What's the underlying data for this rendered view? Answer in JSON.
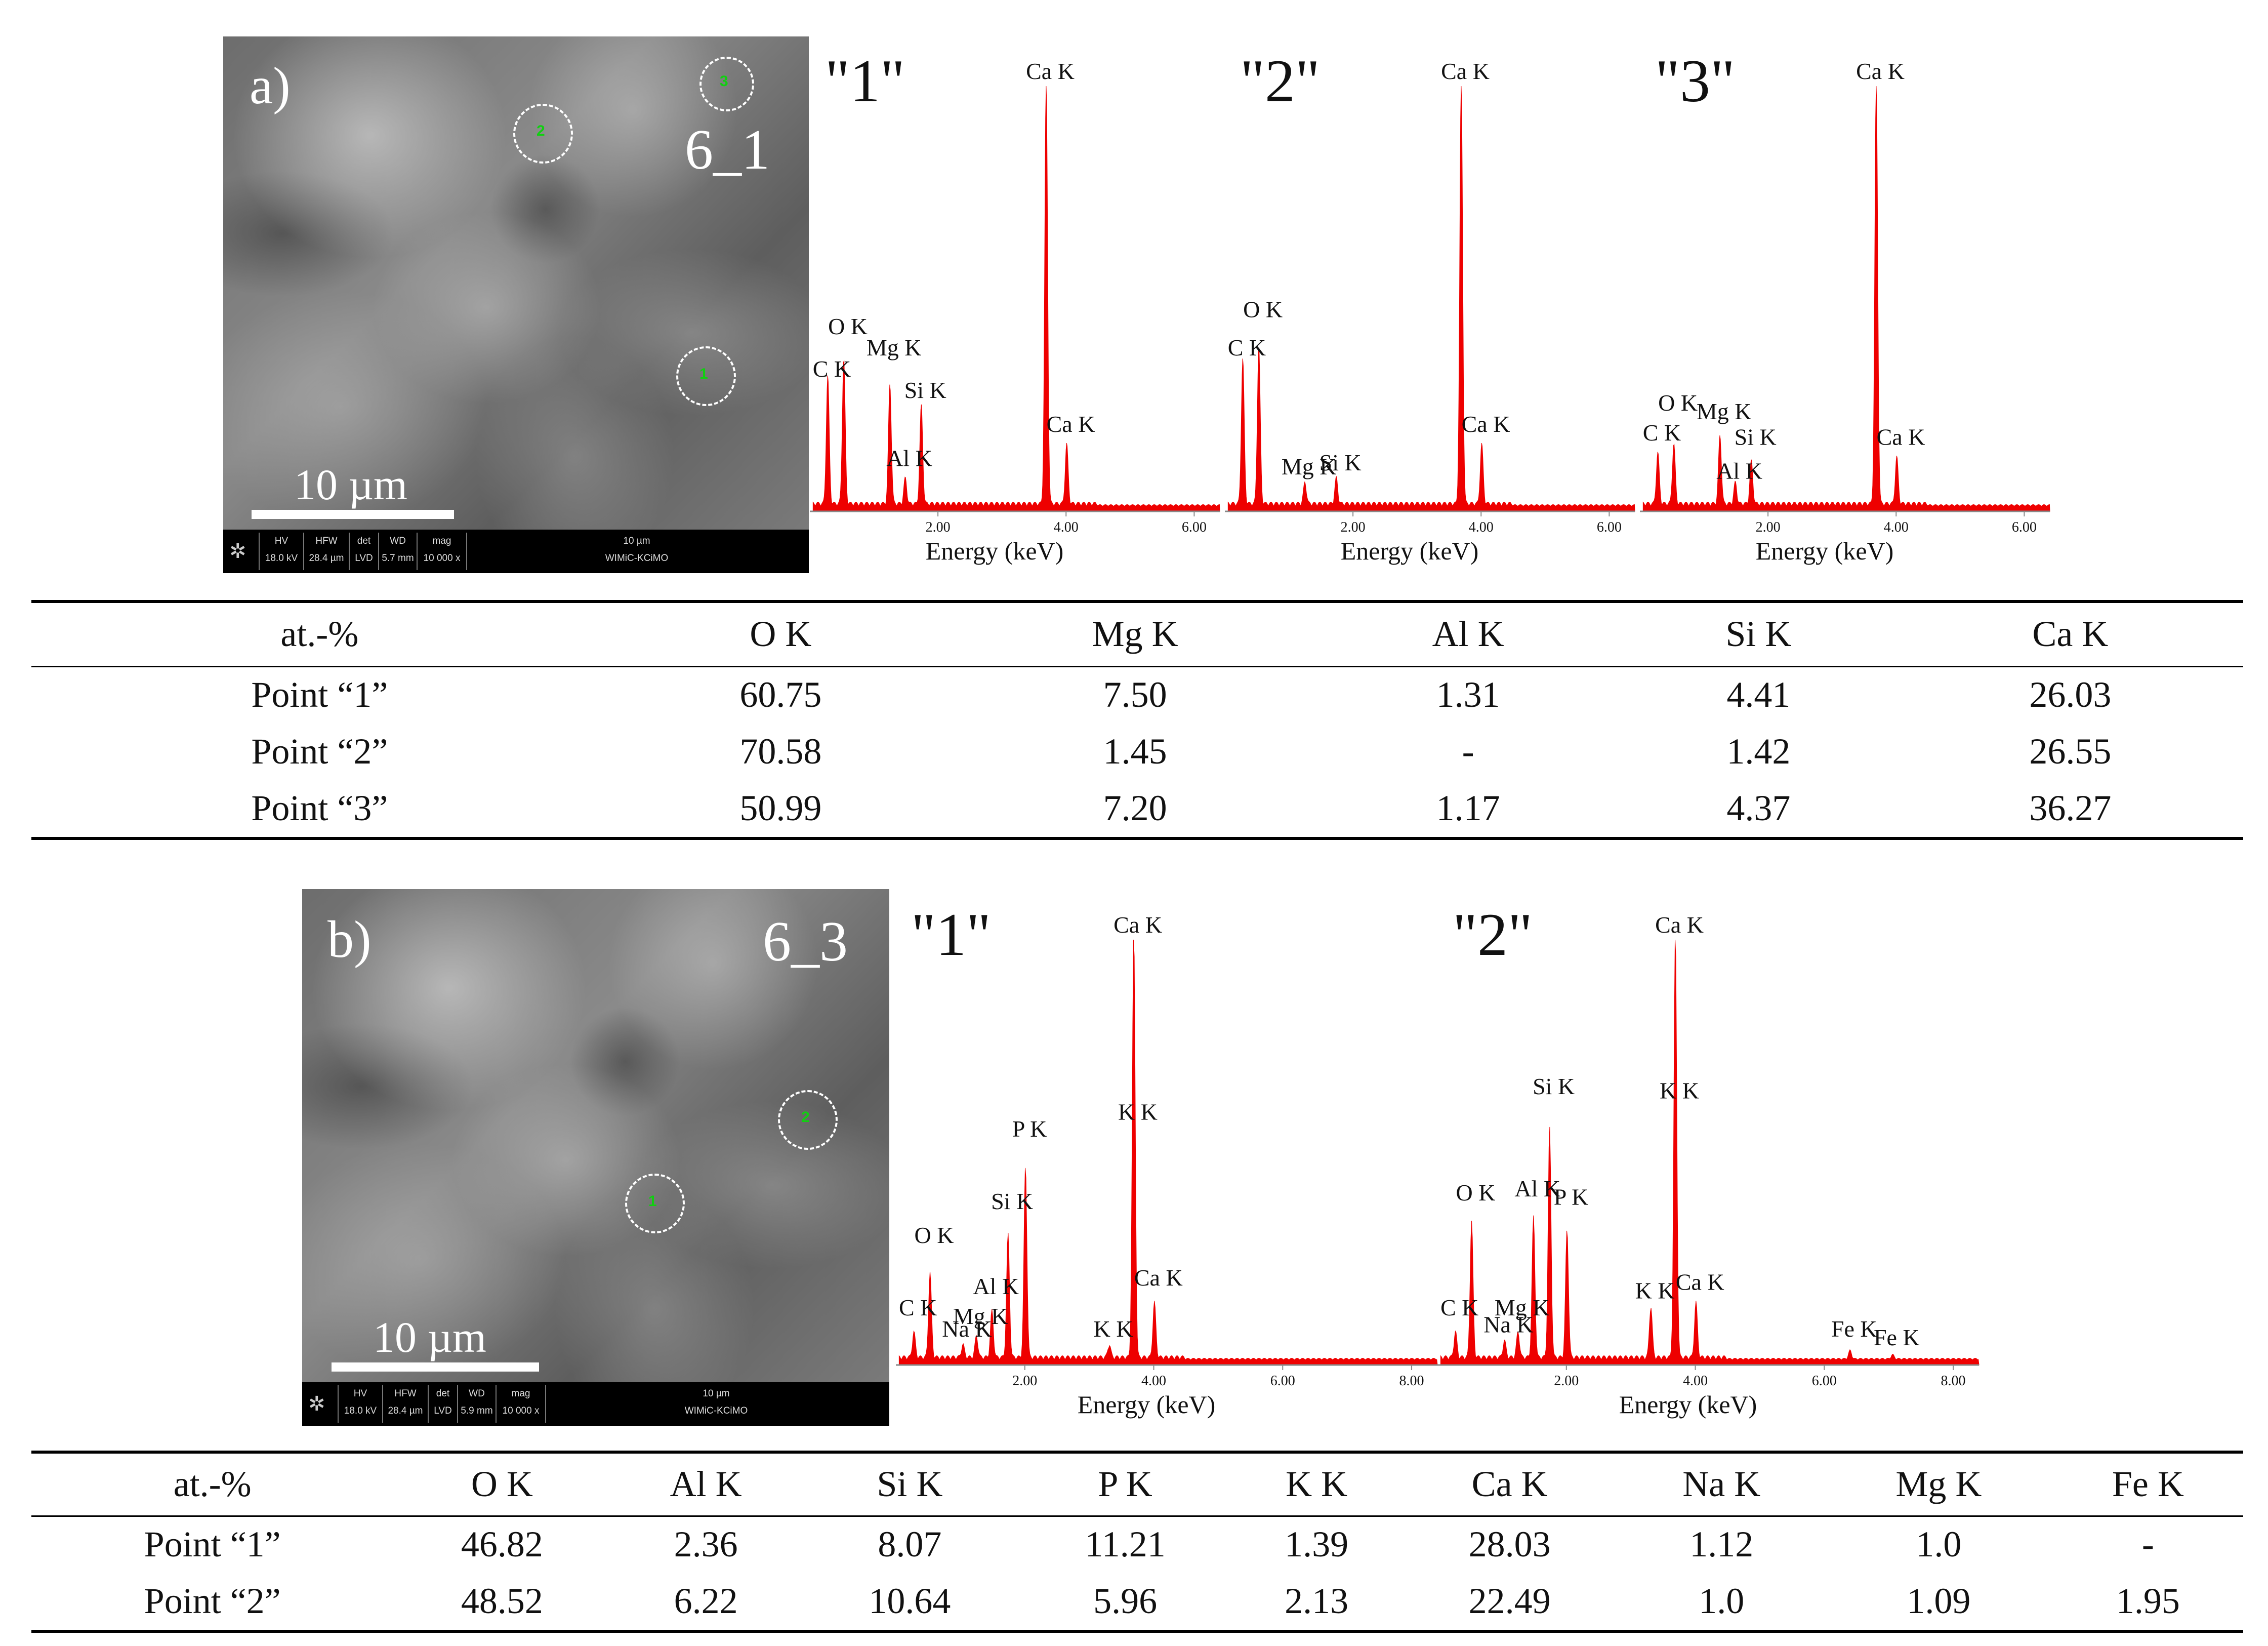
{
  "panel_a": {
    "label": "a)",
    "sample": "6_1",
    "scale_label": "10 µm",
    "points": [
      "1",
      "2",
      "3"
    ],
    "infobar": {
      "headers": [
        "HV",
        "HFW",
        "det",
        "WD",
        "mag"
      ],
      "values": [
        "18.0 kV",
        "28.4 µm",
        "LVD",
        "5.7 mm",
        "10 000 x"
      ],
      "scale_text": "10 µm",
      "lab": "WIMiC-KCiMO"
    },
    "spectra": [
      {
        "number": "\"1\"",
        "xlabel": "Energy (keV)",
        "ticks": [
          "2.00",
          "4.00",
          "6.00"
        ],
        "xmax": 6.4,
        "peaks_keV_height": [
          [
            0.28,
            0.3
          ],
          [
            0.53,
            0.34
          ],
          [
            1.25,
            0.28
          ],
          [
            1.49,
            0.06
          ],
          [
            1.74,
            0.23
          ],
          [
            3.69,
            1.0
          ],
          [
            4.01,
            0.14
          ]
        ],
        "labels": [
          [
            "C K",
            0.28,
            0.3
          ],
          [
            "O K",
            0.53,
            0.4
          ],
          [
            "Mg K",
            1.25,
            0.35
          ],
          [
            "Al K",
            1.49,
            0.09
          ],
          [
            "Si K",
            1.74,
            0.25
          ],
          [
            "Ca K",
            3.69,
            1.0
          ],
          [
            "Ca K",
            4.01,
            0.17
          ]
        ]
      },
      {
        "number": "\"2\"",
        "xlabel": "Energy (keV)",
        "ticks": [
          "2.00",
          "4.00",
          "6.00"
        ],
        "xmax": 6.4,
        "peaks_keV_height": [
          [
            0.28,
            0.34
          ],
          [
            0.53,
            0.37
          ],
          [
            1.25,
            0.05
          ],
          [
            1.74,
            0.06
          ],
          [
            3.69,
            1.0
          ],
          [
            4.01,
            0.14
          ]
        ],
        "labels": [
          [
            "C K",
            0.28,
            0.35
          ],
          [
            "O K",
            0.53,
            0.44
          ],
          [
            "Mg K",
            1.25,
            0.07
          ],
          [
            "Si K",
            1.74,
            0.08
          ],
          [
            "Ca K",
            3.69,
            1.0
          ],
          [
            "Ca K",
            4.01,
            0.17
          ]
        ]
      },
      {
        "number": "\"3\"",
        "xlabel": "Energy (keV)",
        "ticks": [
          "2.00",
          "4.00",
          "6.00"
        ],
        "xmax": 6.4,
        "peaks_keV_height": [
          [
            0.28,
            0.12
          ],
          [
            0.53,
            0.14
          ],
          [
            1.25,
            0.16
          ],
          [
            1.49,
            0.05
          ],
          [
            1.74,
            0.1
          ],
          [
            3.69,
            1.0
          ],
          [
            4.01,
            0.11
          ]
        ],
        "labels": [
          [
            "C K",
            0.28,
            0.15
          ],
          [
            "O K",
            0.53,
            0.22
          ],
          [
            "Mg K",
            1.25,
            0.2
          ],
          [
            "Al K",
            1.49,
            0.06
          ],
          [
            "Si K",
            1.74,
            0.14
          ],
          [
            "Ca K",
            3.69,
            1.0
          ],
          [
            "Ca K",
            4.01,
            0.14
          ]
        ]
      }
    ],
    "table": {
      "headers": [
        "at.-%",
        "O K",
        "Mg K",
        "Al K",
        "Si K",
        "Ca K"
      ],
      "rows": [
        [
          "Point “1”",
          "60.75",
          "7.50",
          "1.31",
          "4.41",
          "26.03"
        ],
        [
          "Point “2”",
          "70.58",
          "1.45",
          "-",
          "1.42",
          "26.55"
        ],
        [
          "Point “3”",
          "50.99",
          "7.20",
          "1.17",
          "4.37",
          "36.27"
        ]
      ]
    }
  },
  "panel_b": {
    "label": "b)",
    "sample": "6_3",
    "scale_label": "10 µm",
    "points": [
      "1",
      "2"
    ],
    "infobar": {
      "headers": [
        "HV",
        "HFW",
        "det",
        "WD",
        "mag"
      ],
      "values": [
        "18.0 kV",
        "28.4 µm",
        "LVD",
        "5.9 mm",
        "10 000 x"
      ],
      "scale_text": "10 µm",
      "lab": "WIMiC-KCiMO"
    },
    "spectra": [
      {
        "number": "\"1\"",
        "xlabel": "Energy (keV)",
        "ticks": [
          "2.00",
          "4.00",
          "6.00",
          "8.00"
        ],
        "xmax": 8.4,
        "peaks_keV_height": [
          [
            0.28,
            0.06
          ],
          [
            0.53,
            0.2
          ],
          [
            1.04,
            0.03
          ],
          [
            1.25,
            0.05
          ],
          [
            1.49,
            0.11
          ],
          [
            1.74,
            0.29
          ],
          [
            2.01,
            0.45
          ],
          [
            3.31,
            0.03
          ],
          [
            3.69,
            1.0
          ],
          [
            4.01,
            0.13
          ]
        ],
        "labels": [
          [
            "C K",
            0.28,
            0.1
          ],
          [
            "O K",
            0.53,
            0.27
          ],
          [
            "Na K",
            1.04,
            0.05
          ],
          [
            "Mg K",
            1.25,
            0.08
          ],
          [
            "Al K",
            1.49,
            0.15
          ],
          [
            "Si K",
            1.74,
            0.35
          ],
          [
            "P K",
            2.01,
            0.52
          ],
          [
            "K K",
            3.31,
            0.05
          ],
          [
            "K K",
            3.69,
            0.56
          ],
          [
            "Ca K",
            3.69,
            1.0
          ],
          [
            "Ca K",
            4.01,
            0.17
          ]
        ]
      },
      {
        "number": "\"2\"",
        "xlabel": "Energy (keV)",
        "ticks": [
          "2.00",
          "4.00",
          "6.00",
          "8.00"
        ],
        "xmax": 8.4,
        "peaks_keV_height": [
          [
            0.28,
            0.06
          ],
          [
            0.53,
            0.32
          ],
          [
            1.04,
            0.04
          ],
          [
            1.25,
            0.06
          ],
          [
            1.49,
            0.33
          ],
          [
            1.74,
            0.54
          ],
          [
            2.01,
            0.3
          ],
          [
            3.31,
            0.12
          ],
          [
            3.69,
            1.0
          ],
          [
            4.01,
            0.13
          ],
          [
            6.4,
            0.02
          ],
          [
            7.06,
            0.01
          ]
        ],
        "labels": [
          [
            "C K",
            0.28,
            0.1
          ],
          [
            "O K",
            0.53,
            0.37
          ],
          [
            "Na K",
            1.04,
            0.06
          ],
          [
            "Mg K",
            1.25,
            0.1
          ],
          [
            "Al K",
            1.49,
            0.38
          ],
          [
            "Si K",
            1.74,
            0.62
          ],
          [
            "P K",
            2.01,
            0.36
          ],
          [
            "K K",
            3.31,
            0.14
          ],
          [
            "K K",
            3.69,
            0.61
          ],
          [
            "Ca K",
            3.69,
            1.0
          ],
          [
            "Ca K",
            4.01,
            0.16
          ],
          [
            "Fe K",
            6.4,
            0.05
          ],
          [
            "Fe K",
            7.06,
            0.03
          ]
        ]
      }
    ],
    "table": {
      "headers": [
        "at.-%",
        "O K",
        "Al K",
        "Si K",
        "P K",
        "K K",
        "Ca K",
        "Na K",
        "Mg K",
        "Fe K"
      ],
      "rows": [
        [
          "Point “1”",
          "46.82",
          "2.36",
          "8.07",
          "11.21",
          "1.39",
          "28.03",
          "1.12",
          "1.0",
          "-"
        ],
        [
          "Point “2”",
          "48.52",
          "6.22",
          "10.64",
          "5.96",
          "2.13",
          "22.49",
          "1.0",
          "1.09",
          "1.95"
        ]
      ]
    }
  },
  "colors": {
    "spectrum": "#ee0000",
    "point_label": "#10d010"
  }
}
